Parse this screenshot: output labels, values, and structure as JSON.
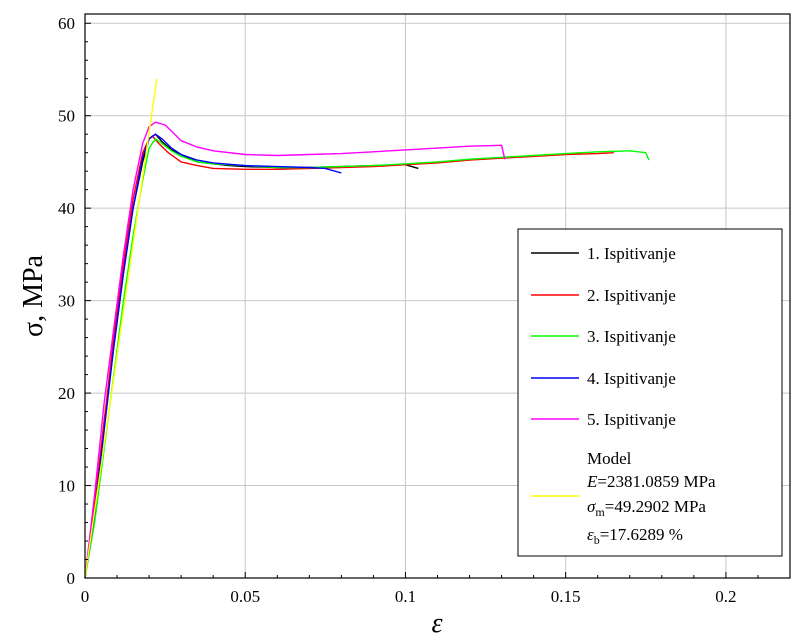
{
  "chart_data": {
    "type": "line",
    "xlabel": "ε",
    "ylabel": "σ, MPa",
    "xlim": [
      0,
      0.22
    ],
    "ylim": [
      0,
      61
    ],
    "grid": true,
    "legend_position": "right",
    "x_ticks": [
      0,
      0.05,
      0.1,
      0.15,
      0.2
    ],
    "x_tick_labels": [
      "0",
      "0.05",
      "0.1",
      "0.15",
      "0.2"
    ],
    "y_ticks": [
      0,
      10,
      20,
      30,
      40,
      50,
      60
    ],
    "y_tick_labels": [
      "0",
      "10",
      "20",
      "30",
      "40",
      "50",
      "60"
    ],
    "series": [
      {
        "name": "1. Ispitivanje",
        "color": "#000000",
        "x": [
          0,
          0.003,
          0.006,
          0.009,
          0.012,
          0.015,
          0.018,
          0.02,
          0.022,
          0.024,
          0.027,
          0.03,
          0.035,
          0.04,
          0.045,
          0.05,
          0.06,
          0.07,
          0.08,
          0.09,
          0.1,
          0.104
        ],
        "y": [
          0,
          7,
          17,
          25,
          33,
          40,
          45,
          47.5,
          48,
          47.2,
          46.3,
          45.8,
          45,
          44.8,
          44.6,
          44.5,
          44.4,
          44.4,
          44.5,
          44.6,
          44.7,
          44.3
        ]
      },
      {
        "name": "2. Ispitivanje",
        "color": "#ff0000",
        "x": [
          0,
          0.003,
          0.006,
          0.009,
          0.012,
          0.015,
          0.018,
          0.02,
          0.021,
          0.023,
          0.026,
          0.03,
          0.035,
          0.04,
          0.05,
          0.06,
          0.07,
          0.08,
          0.09,
          0.1,
          0.11,
          0.12,
          0.13,
          0.14,
          0.15,
          0.16,
          0.165
        ],
        "y": [
          0,
          8,
          17,
          26,
          34,
          41,
          46,
          47.5,
          47.8,
          47,
          46,
          45,
          44.6,
          44.3,
          44.2,
          44.2,
          44.3,
          44.4,
          44.5,
          44.7,
          44.9,
          45.2,
          45.4,
          45.6,
          45.8,
          45.9,
          46
        ]
      },
      {
        "name": "3. Ispitivanje",
        "color": "#00ff00",
        "x": [
          0,
          0.003,
          0.006,
          0.009,
          0.012,
          0.015,
          0.018,
          0.02,
          0.022,
          0.024,
          0.027,
          0.03,
          0.035,
          0.04,
          0.05,
          0.06,
          0.07,
          0.08,
          0.09,
          0.1,
          0.11,
          0.12,
          0.13,
          0.14,
          0.15,
          0.16,
          0.17,
          0.175,
          0.176
        ],
        "y": [
          0,
          6,
          14,
          22,
          30,
          37,
          43,
          46.5,
          47.5,
          47,
          46.2,
          45.6,
          45,
          44.8,
          44.6,
          44.4,
          44.4,
          44.5,
          44.6,
          44.8,
          45,
          45.3,
          45.5,
          45.7,
          45.9,
          46.1,
          46.2,
          46,
          45.2
        ]
      },
      {
        "name": "4. Ispitivanje",
        "color": "#0000ff",
        "x": [
          0,
          0.003,
          0.006,
          0.009,
          0.012,
          0.015,
          0.018,
          0.02,
          0.022,
          0.024,
          0.027,
          0.03,
          0.035,
          0.04,
          0.05,
          0.06,
          0.07,
          0.075,
          0.08
        ],
        "y": [
          0,
          7,
          16,
          25,
          33,
          40,
          45.5,
          47.5,
          48,
          47.5,
          46.5,
          45.8,
          45.2,
          44.9,
          44.6,
          44.5,
          44.4,
          44.3,
          43.8
        ]
      },
      {
        "name": "5. Ispitivanje",
        "color": "#ff00ff",
        "x": [
          0,
          0.003,
          0.006,
          0.009,
          0.012,
          0.015,
          0.018,
          0.02,
          0.022,
          0.025,
          0.028,
          0.03,
          0.035,
          0.04,
          0.05,
          0.06,
          0.07,
          0.08,
          0.09,
          0.1,
          0.11,
          0.12,
          0.13,
          0.131
        ],
        "y": [
          0,
          9,
          19,
          27,
          35,
          42,
          47,
          48.8,
          49.3,
          49,
          48,
          47.3,
          46.6,
          46.2,
          45.8,
          45.7,
          45.8,
          45.9,
          46.1,
          46.3,
          46.5,
          46.7,
          46.8,
          45.3
        ]
      },
      {
        "name": "Model",
        "color": "#ffff00",
        "x": [
          0,
          0.0224
        ],
        "y": [
          0,
          54
        ]
      }
    ],
    "model_annotation": {
      "title": "Model",
      "E_symbol": "E",
      "E_value": "=2381.0859 MPa",
      "sigma_symbol": "σ",
      "sigma_sub": "m",
      "sigma_value": "=49.2902 MPa",
      "eps_symbol": "ε",
      "eps_sub": "b",
      "eps_value": "=17.6289 %"
    }
  }
}
